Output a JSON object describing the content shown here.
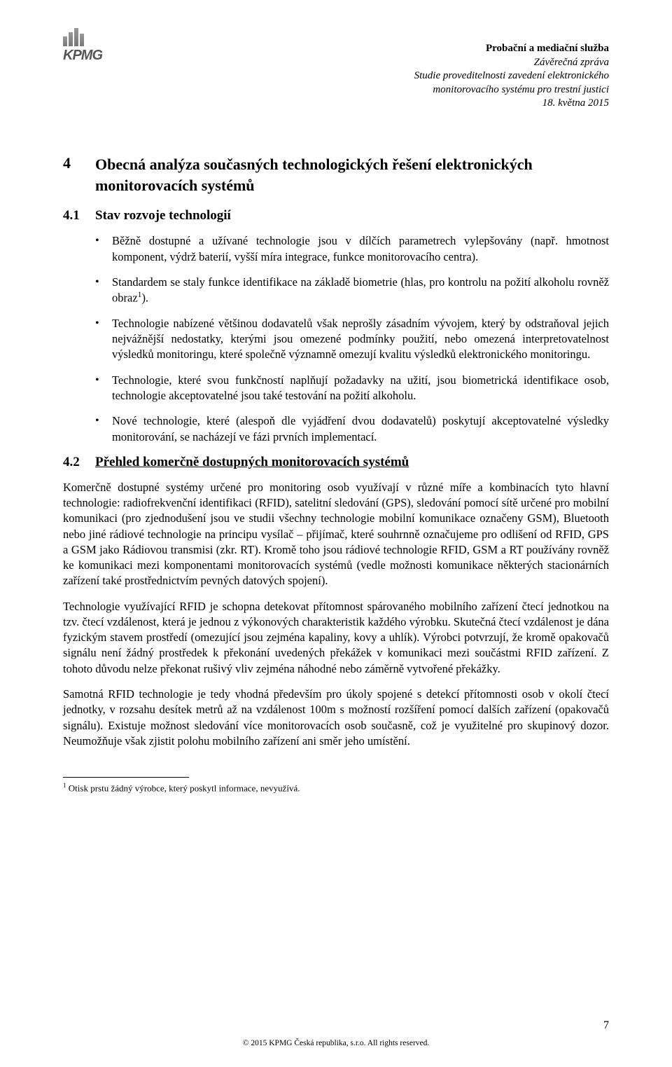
{
  "logo_text": "KPMG",
  "header": {
    "l1": "Probační a mediační služba",
    "l2": "Závěrečná zpráva",
    "l3": "Studie proveditelnosti zavedení elektronického",
    "l4": "monitorovacího systému pro trestní justici",
    "l5": "18. května 2015"
  },
  "s4": {
    "num": "4",
    "title": "Obecná analýza současných technologických řešení elektronických monitorovacích systémů"
  },
  "s41": {
    "num": "4.1",
    "title": "Stav rozvoje technologií",
    "b1": "Běžně dostupné a užívané technologie jsou v dílčích parametrech vylepšovány (např. hmotnost komponent, výdrž baterií, vyšší míra integrace, funkce monitorovacího centra).",
    "b2a": "Standardem se staly funkce identifikace na základě biometrie (hlas, pro kontrolu na požití alkoholu rovněž obraz",
    "b2b": ").",
    "b3": "Technologie nabízené většinou dodavatelů však neprošly zásadním vývojem, který by odstraňoval jejich nejvážnější nedostatky, kterými jsou omezené podmínky použití, nebo omezená interpretovatelnost výsledků monitoringu, které společně významně omezují kvalitu výsledků elektronického monitoringu.",
    "b4": "Technologie, které svou funkčností naplňují požadavky na užití, jsou biometrická identifikace osob, technologie akceptovatelné jsou také testování na požití alkoholu.",
    "b5": "Nové technologie, které (alespoň dle vyjádření dvou dodavatelů) poskytují akceptovatelné výsledky monitorování, se nacházejí ve fázi prvních implementací."
  },
  "s42": {
    "num": "4.2",
    "title": "Přehled komerčně dostupných monitorovacích systémů",
    "p1": "Komerčně dostupné systémy určené pro monitoring osob využívají v různé míře a kombinacích tyto hlavní technologie: radiofrekvenční identifikaci (RFID), satelitní sledování (GPS), sledování pomocí sítě určené pro mobilní komunikaci (pro zjednodušení jsou ve studii všechny technologie mobilní komunikace označeny GSM), Bluetooth nebo jiné rádiové technologie na principu vysílač – přijímač, které souhrnně označujeme pro odlišení od RFID, GPS a GSM jako Rádiovou transmisi (zkr. RT). Kromě toho jsou rádiové technologie RFID, GSM a RT používány rovněž ke komunikaci mezi komponentami monitorovacích systémů (vedle možnosti komunikace některých stacionárních zařízení také prostřednictvím pevných datových spojení).",
    "p2": "Technologie využívající RFID je schopna detekovat přítomnost spárovaného mobilního zařízení čtecí jednotkou na tzv. čtecí vzdálenost, která je jednou z výkonových charakteristik každého výrobku. Skutečná čtecí vzdálenost je dána fyzickým stavem prostředí (omezující jsou zejména kapaliny, kovy a uhlík). Výrobci potvrzují, že kromě opakovačů signálu není žádný prostředek k překonání uvedených překážek v komunikaci mezi součástmi RFID zařízení. Z tohoto důvodu nelze překonat rušivý vliv zejména náhodné nebo záměrně vytvořené překážky.",
    "p3": "Samotná RFID technologie je tedy vhodná především pro úkoly spojené s detekcí přítomnosti osob v okolí čtecí jednotky, v rozsahu desítek metrů až na vzdálenost 100m s možností rozšíření pomocí dalších zařízení (opakovačů signálu). Existuje možnost sledování více monitorovacích osob současně, což je využitelné pro skupinový dozor. Neumožňuje však zjistit polohu mobilního zařízení ani směr jeho umístění."
  },
  "footnote": {
    "mark": "1",
    "text": " Otisk prstu žádný výrobce, který poskytl informace, nevyužívá."
  },
  "footer": "© 2015 KPMG Česká republika, s.r.o. All rights reserved.",
  "page_number": "7"
}
